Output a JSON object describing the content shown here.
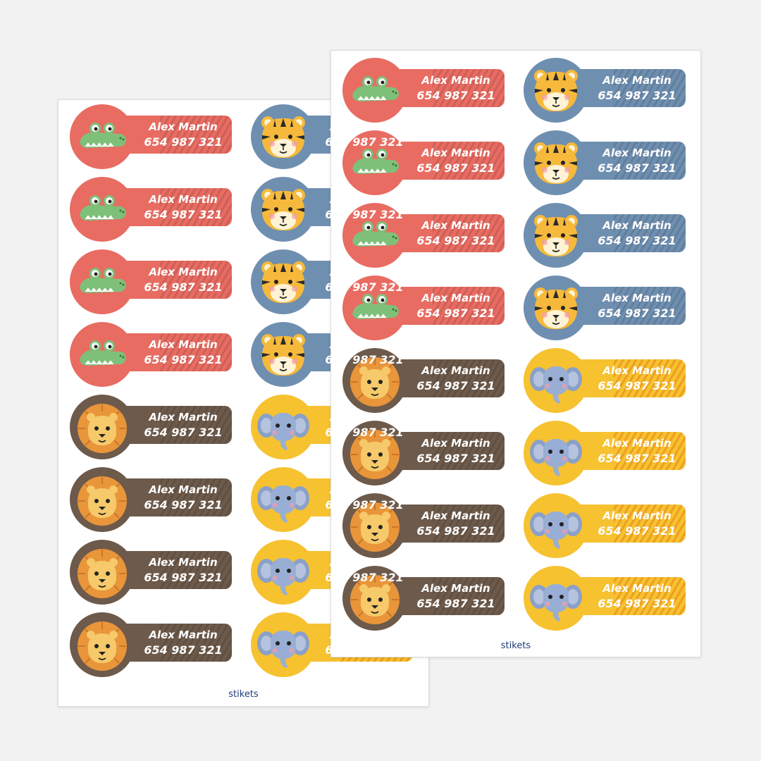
{
  "brand": "stikets",
  "label": {
    "name": "Alex Martin",
    "phone": "654 987 321"
  },
  "animals": [
    "crocodile",
    "tiger",
    "lion",
    "elephant"
  ],
  "colors": {
    "crocodile": "#e86c62",
    "tiger": "#6f8fb0",
    "lion": "#6d5a4b",
    "elephant": "#f6c230",
    "brand_text": "#1f3c7a"
  },
  "sheets": [
    {
      "id": "back",
      "columns": [
        [
          "crocodile",
          "crocodile",
          "crocodile",
          "crocodile",
          "lion",
          "lion",
          "lion",
          "lion"
        ],
        [
          "tiger",
          "tiger",
          "tiger",
          "tiger",
          "elephant",
          "elephant",
          "elephant",
          "elephant"
        ]
      ]
    },
    {
      "id": "front",
      "columns": [
        [
          "crocodile",
          "crocodile",
          "crocodile",
          "crocodile",
          "lion",
          "lion",
          "lion",
          "lion"
        ],
        [
          "tiger",
          "tiger",
          "tiger",
          "tiger",
          "elephant",
          "elephant",
          "elephant",
          "elephant"
        ]
      ]
    }
  ]
}
